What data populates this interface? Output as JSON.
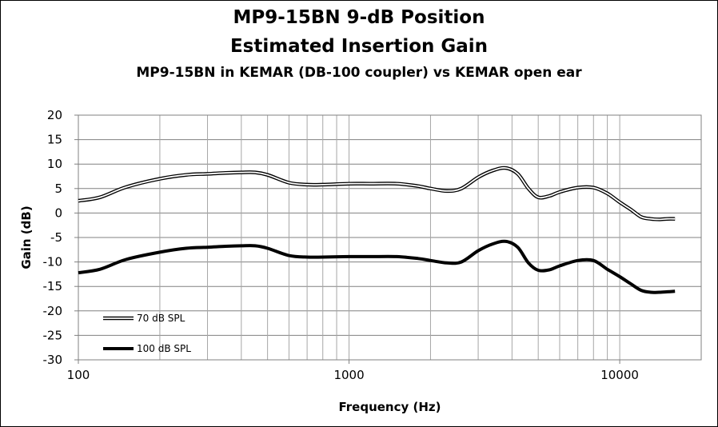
{
  "chart_data": {
    "type": "line",
    "title": "MP9-15BN  9-dB Position",
    "title_line2": "Estimated Insertion Gain",
    "subtitle": "MP9-15BN in KEMAR (DB-100 coupler) vs KEMAR open ear",
    "xlabel": "Frequency (Hz)",
    "ylabel": "Gain (dB)",
    "xscale": "log",
    "xlim": [
      100,
      20000
    ],
    "ylim": [
      -30,
      20
    ],
    "xticks": [
      100,
      1000,
      10000
    ],
    "yticks": [
      20,
      15,
      10,
      5,
      0,
      -5,
      -10,
      -15,
      -20,
      -25,
      -30
    ],
    "grid": true,
    "legend_position": "bottom-left",
    "series": [
      {
        "name": "70 dB SPL",
        "style": "double",
        "color": "#000000",
        "x": [
          100,
          120,
          150,
          200,
          250,
          300,
          350,
          400,
          450,
          500,
          600,
          700,
          800,
          1000,
          1200,
          1500,
          1800,
          2000,
          2300,
          2600,
          3000,
          3400,
          3800,
          4200,
          4600,
          5000,
          5500,
          6000,
          7000,
          8000,
          9000,
          10000,
          11000,
          12000,
          13000,
          14000,
          15000,
          16000
        ],
        "y": [
          2.5,
          3.2,
          5.3,
          7.0,
          7.8,
          8.0,
          8.2,
          8.3,
          8.3,
          7.8,
          6.2,
          5.8,
          5.8,
          6.0,
          6.0,
          6.0,
          5.5,
          5.0,
          4.5,
          5.0,
          7.3,
          8.7,
          9.2,
          8.0,
          5.0,
          3.2,
          3.5,
          4.3,
          5.2,
          5.2,
          4.0,
          2.2,
          0.7,
          -0.8,
          -1.2,
          -1.3,
          -1.2,
          -1.2
        ]
      },
      {
        "name": "100 dB SPL",
        "style": "bold",
        "color": "#000000",
        "x": [
          100,
          120,
          150,
          200,
          250,
          300,
          350,
          400,
          450,
          500,
          600,
          700,
          800,
          1000,
          1200,
          1500,
          1800,
          2000,
          2300,
          2600,
          3000,
          3400,
          3800,
          4200,
          4600,
          5000,
          5500,
          6000,
          7000,
          8000,
          9000,
          10000,
          11000,
          12000,
          13000,
          14000,
          15000,
          16000
        ],
        "y": [
          -12.2,
          -11.5,
          -9.5,
          -8.0,
          -7.2,
          -7.0,
          -6.8,
          -6.7,
          -6.7,
          -7.2,
          -8.7,
          -9.0,
          -9.0,
          -8.9,
          -8.9,
          -8.9,
          -9.3,
          -9.7,
          -10.2,
          -10.0,
          -7.7,
          -6.3,
          -5.8,
          -7.0,
          -10.2,
          -11.7,
          -11.6,
          -10.8,
          -9.7,
          -9.7,
          -11.5,
          -13.0,
          -14.5,
          -15.8,
          -16.2,
          -16.2,
          -16.1,
          -16.0
        ]
      }
    ]
  }
}
